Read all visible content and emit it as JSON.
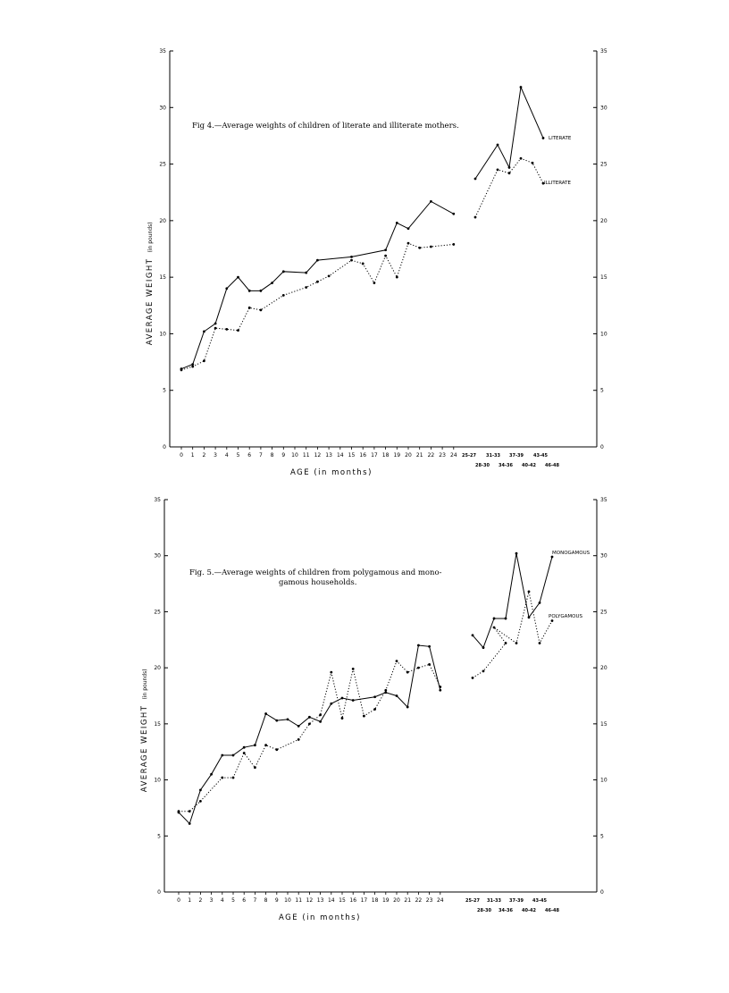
{
  "chart_data": [
    {
      "type": "line",
      "title": "Fig 4.—Average weights of children of literate and illiterate mothers.",
      "xlabel": "AGE (in months)",
      "ylabel": "AVERAGE WEIGHT",
      "ylabel_unit": "(in pounds)",
      "ylim": [
        0,
        35
      ],
      "yticks": [
        "0",
        "5",
        "10",
        "15",
        "20",
        "25",
        "30",
        "35"
      ],
      "x_monthly": [
        "0",
        "1",
        "2",
        "3",
        "4",
        "5",
        "6",
        "7",
        "8",
        "9",
        "10",
        "11",
        "12",
        "13",
        "14",
        "15",
        "16",
        "17",
        "18",
        "19",
        "20",
        "21",
        "22",
        "23",
        "24"
      ],
      "x_grouped_upper": [
        "25-27",
        "31-33",
        "37-39",
        "43-45"
      ],
      "x_grouped_lower": [
        "28-30",
        "34-36",
        "40-42",
        "46-48"
      ],
      "series": [
        {
          "name": "LITERATE",
          "style": "solid",
          "monthly": [
            [
              0,
              6.9
            ],
            [
              1,
              7.3
            ],
            [
              2,
              10.2
            ],
            [
              3,
              10.9
            ],
            [
              4,
              14.0
            ],
            [
              5,
              15.0
            ],
            [
              6,
              13.8
            ],
            [
              7,
              13.8
            ],
            [
              8,
              14.5
            ],
            [
              9,
              15.5
            ],
            [
              11,
              15.4
            ],
            [
              12,
              16.5
            ],
            [
              15,
              16.8
            ],
            [
              18,
              17.4
            ],
            [
              19,
              19.8
            ],
            [
              20,
              19.3
            ],
            [
              22,
              21.7
            ],
            [
              24,
              20.6
            ]
          ],
          "grouped": [
            23.7,
            26.7,
            24.7,
            31.8,
            27.3
          ]
        },
        {
          "name": "ILLITERATE",
          "style": "dotted",
          "monthly": [
            [
              0,
              6.8
            ],
            [
              1,
              7.1
            ],
            [
              2,
              7.6
            ],
            [
              3,
              10.5
            ],
            [
              4,
              10.4
            ],
            [
              5,
              10.3
            ],
            [
              6,
              12.3
            ],
            [
              7,
              12.1
            ],
            [
              9,
              13.4
            ],
            [
              11,
              14.1
            ],
            [
              12,
              14.6
            ],
            [
              13,
              15.1
            ],
            [
              15,
              16.5
            ],
            [
              16,
              16.2
            ],
            [
              17,
              14.5
            ],
            [
              18,
              16.9
            ],
            [
              19,
              15.0
            ],
            [
              20,
              18.0
            ],
            [
              21,
              17.6
            ],
            [
              22,
              17.7
            ],
            [
              24,
              17.9
            ]
          ],
          "grouped": [
            20.3,
            24.5,
            24.2,
            25.5,
            25.1,
            23.3
          ]
        }
      ]
    },
    {
      "type": "line",
      "title": "Fig. 5.—Average weights of children from polygamous and monogamous households.",
      "title_line1": "Fig. 5.—Average weights of children from polygamous and mono-",
      "title_line2": "gamous households.",
      "xlabel": "AGE (in months)",
      "ylabel": "AVERAGE WEIGHT",
      "ylabel_unit": "(in pounds)",
      "ylim": [
        0,
        35
      ],
      "yticks": [
        "0",
        "5",
        "10",
        "15",
        "20",
        "25",
        "30",
        "35"
      ],
      "x_monthly": [
        "0",
        "1",
        "2",
        "3",
        "4",
        "5",
        "6",
        "7",
        "8",
        "9",
        "10",
        "11",
        "12",
        "13",
        "14",
        "15",
        "16",
        "17",
        "18",
        "19",
        "20",
        "21",
        "22",
        "23",
        "24"
      ],
      "x_grouped_upper": [
        "25-27",
        "31-33",
        "37-39",
        "43-45"
      ],
      "x_grouped_lower": [
        "28-30",
        "34-36",
        "40-42",
        "46-48"
      ],
      "series": [
        {
          "name": "MONOGAMOUS",
          "style": "solid",
          "monthly": [
            [
              0,
              7.1
            ],
            [
              1,
              6.1
            ],
            [
              2,
              9.1
            ],
            [
              3,
              10.5
            ],
            [
              4,
              12.2
            ],
            [
              5,
              12.2
            ],
            [
              6,
              12.9
            ],
            [
              7,
              13.1
            ],
            [
              8,
              15.9
            ],
            [
              9,
              15.3
            ],
            [
              10,
              15.4
            ],
            [
              11,
              14.8
            ],
            [
              12,
              15.6
            ],
            [
              13,
              15.2
            ],
            [
              14,
              16.8
            ],
            [
              15,
              17.3
            ],
            [
              16,
              17.1
            ],
            [
              18,
              17.4
            ],
            [
              19,
              17.8
            ],
            [
              20,
              17.5
            ],
            [
              21,
              16.5
            ],
            [
              22,
              22.0
            ],
            [
              23,
              21.9
            ],
            [
              24,
              18.0
            ]
          ],
          "grouped": [
            22.9,
            21.8,
            24.4,
            24.4,
            30.2,
            24.5,
            25.8,
            29.9
          ]
        },
        {
          "name": "POLYGAMOUS",
          "style": "dotted",
          "monthly": [
            [
              0,
              7.2
            ],
            [
              1,
              7.2
            ],
            [
              2,
              8.1
            ],
            [
              4,
              10.2
            ],
            [
              5,
              10.2
            ],
            [
              6,
              12.4
            ],
            [
              7,
              11.1
            ],
            [
              8,
              13.1
            ],
            [
              9,
              12.7
            ],
            [
              11,
              13.6
            ],
            [
              12,
              15.0
            ],
            [
              13,
              15.8
            ],
            [
              14,
              19.6
            ],
            [
              15,
              15.5
            ],
            [
              16,
              19.9
            ],
            [
              17,
              15.7
            ],
            [
              18,
              16.3
            ],
            [
              19,
              18.0
            ],
            [
              20,
              20.6
            ],
            [
              21,
              19.6
            ],
            [
              22,
              20.0
            ],
            [
              23,
              20.3
            ],
            [
              24,
              18.3
            ]
          ],
          "grouped": [
            19.1,
            19.7,
            22.2,
            23.6,
            22.2,
            26.8,
            22.2,
            24.2
          ]
        }
      ]
    }
  ]
}
